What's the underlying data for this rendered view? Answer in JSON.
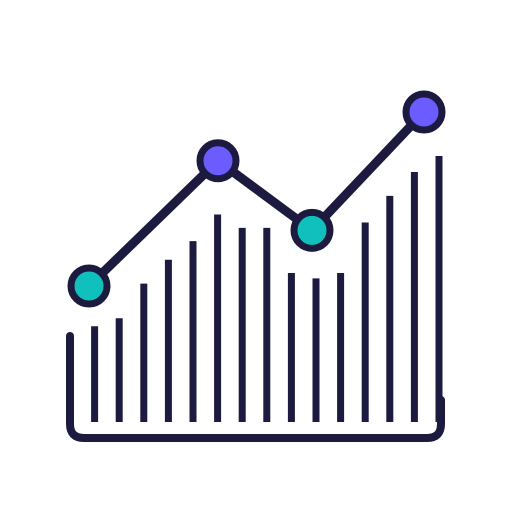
{
  "icon": {
    "name": "analytics-chart-icon",
    "colors": {
      "background": "#ffffff",
      "stroke": "#1c1a3e",
      "accent_purple": "#6b5cff",
      "accent_teal": "#10c0bd"
    },
    "bars": {
      "relative_heights": [
        0.32,
        0.36,
        0.39,
        0.52,
        0.61,
        0.68,
        0.78,
        0.73,
        0.73,
        0.56,
        0.54,
        0.56,
        0.75,
        0.85,
        0.94,
        1.0
      ]
    },
    "line_markers": [
      {
        "name": "marker-1",
        "level": 0.5,
        "color": "teal"
      },
      {
        "name": "marker-2",
        "level": 0.86,
        "color": "purple"
      },
      {
        "name": "marker-3",
        "level": 0.66,
        "color": "teal"
      },
      {
        "name": "marker-4",
        "level": 1.0,
        "color": "purple"
      }
    ]
  }
}
